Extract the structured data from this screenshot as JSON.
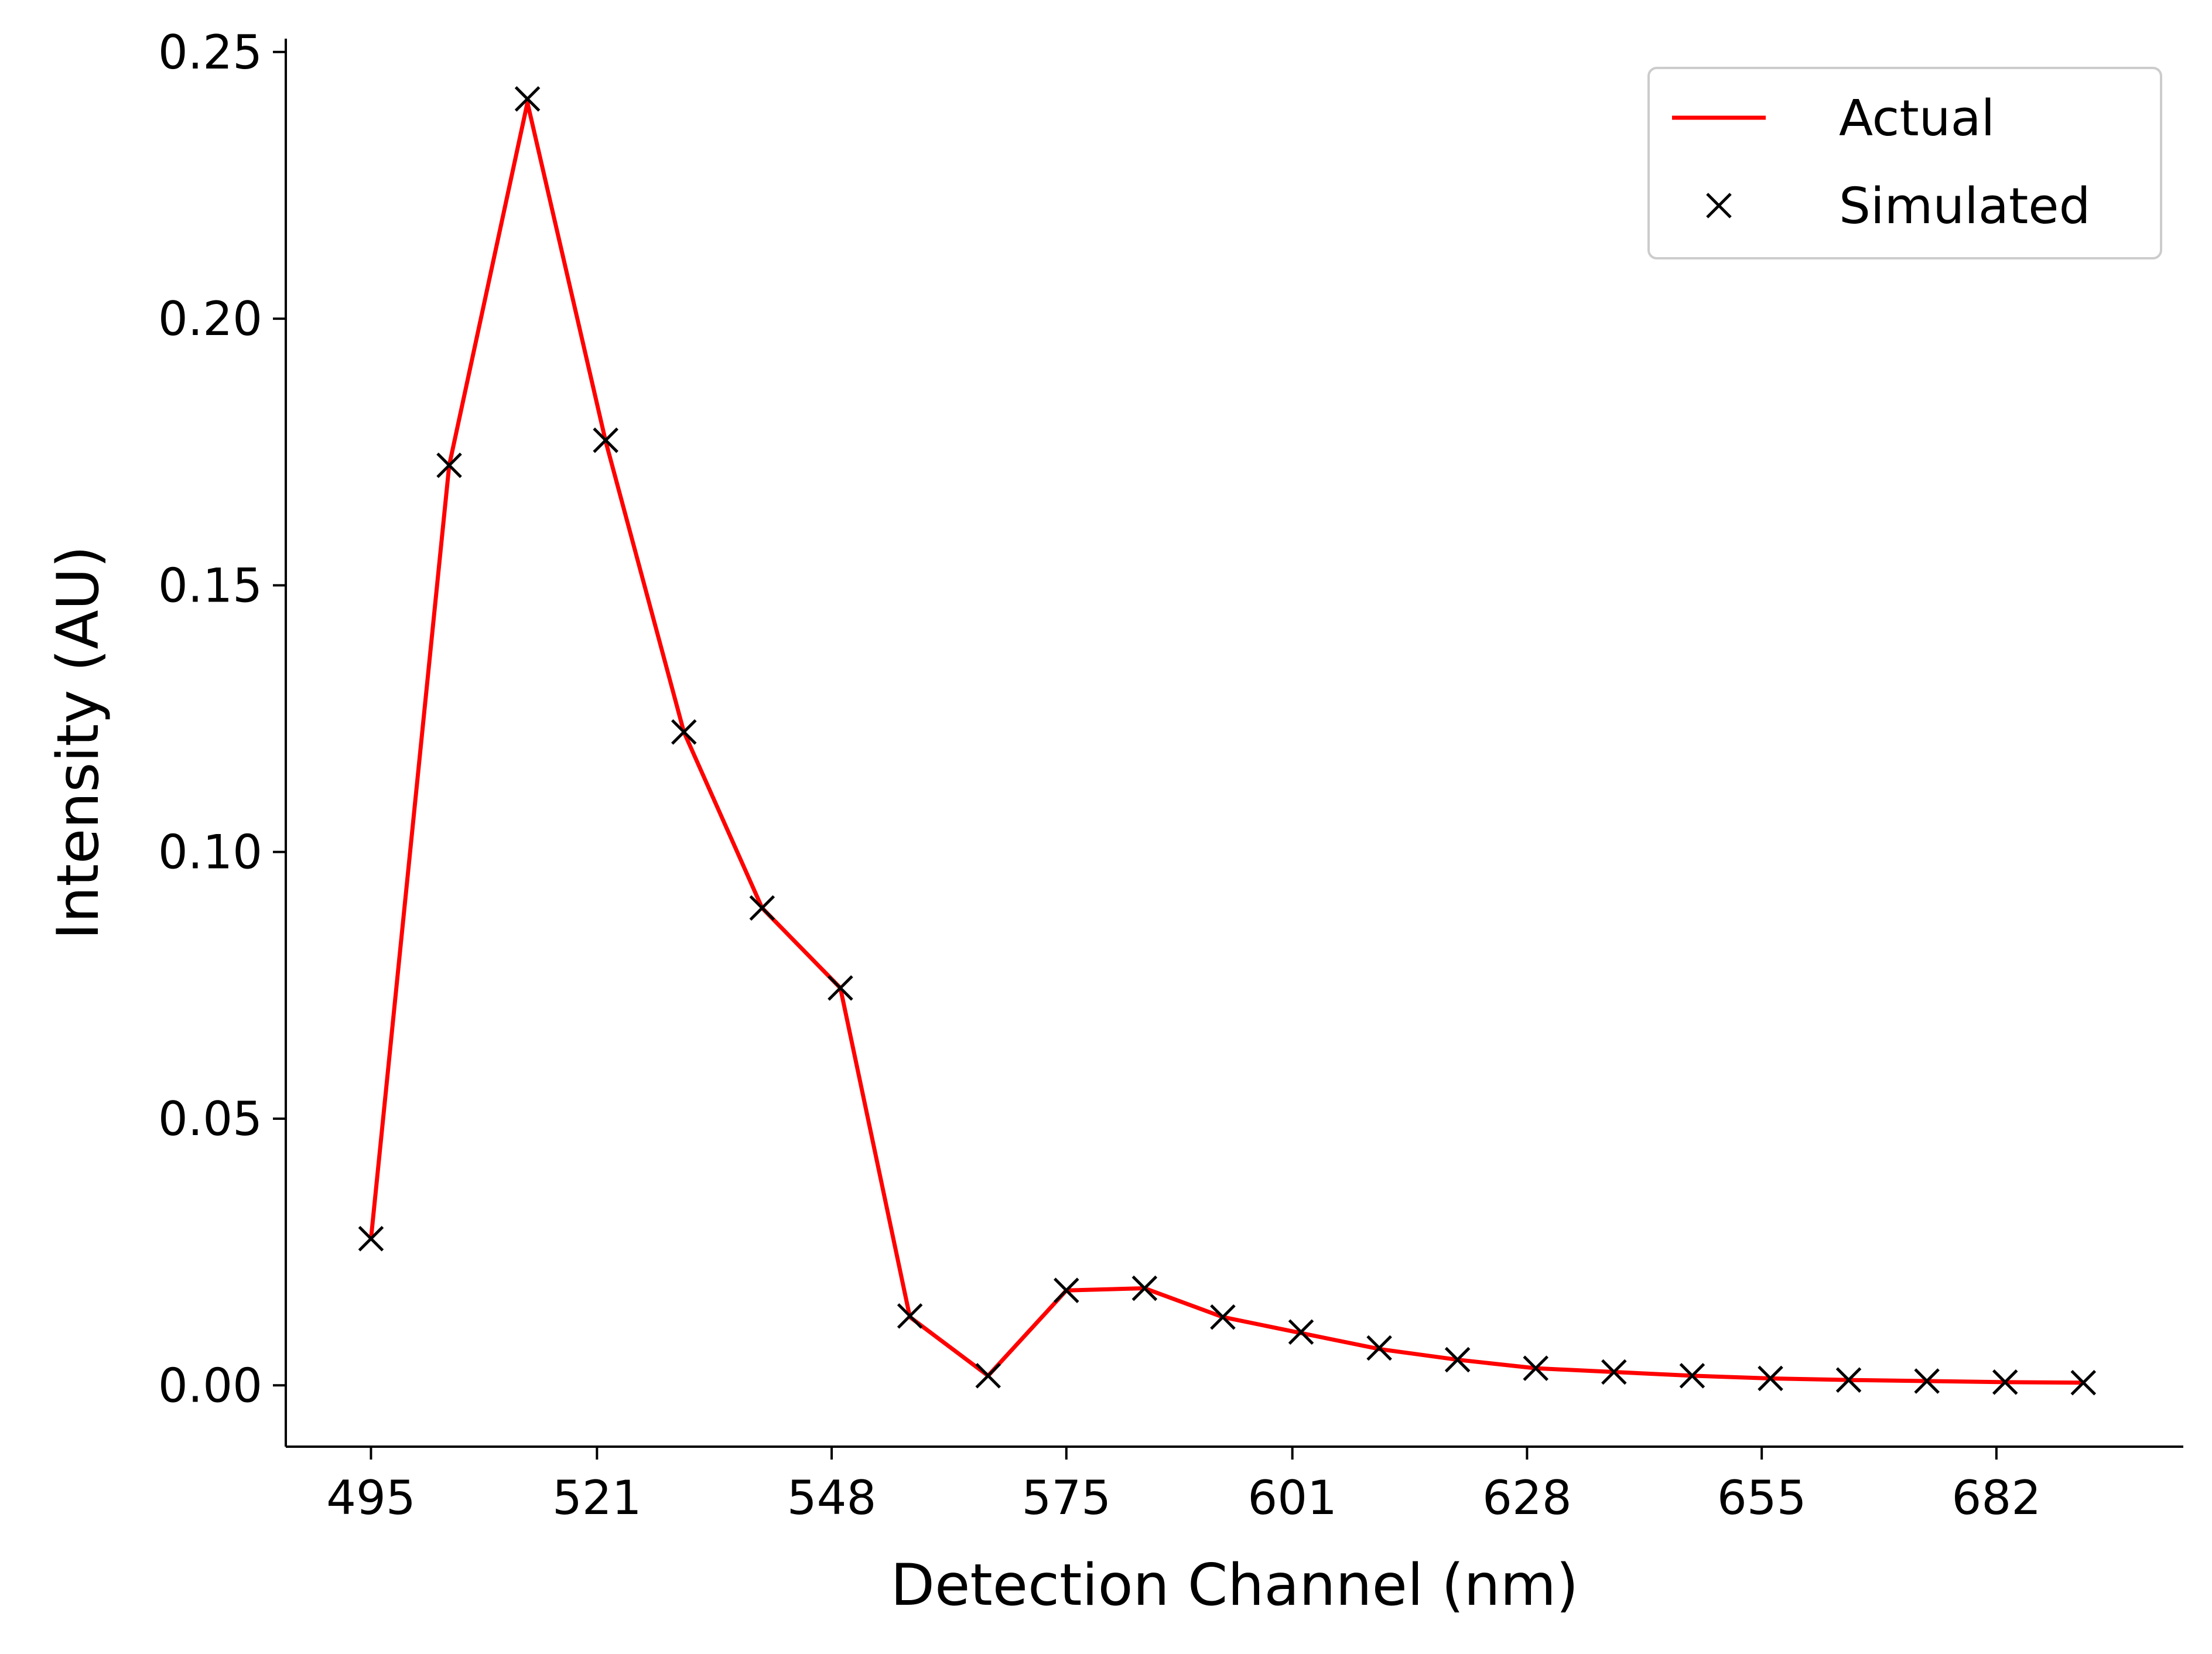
{
  "chart_data": {
    "type": "line",
    "title": "",
    "xlabel": "Detection Channel (nm)",
    "ylabel": "Intensity (AU)",
    "xlim": [
      485.2,
      703.5
    ],
    "ylim": [
      -0.0115,
      0.2525
    ],
    "xticks": [
      495,
      521,
      548,
      575,
      601,
      628,
      655,
      682
    ],
    "yticks": [
      0.0,
      0.05,
      0.1,
      0.15,
      0.2,
      0.25
    ],
    "ytick_labels": [
      "0.00",
      "0.05",
      "0.10",
      "0.15",
      "0.20",
      "0.25"
    ],
    "grid": false,
    "legend_position": "top-right",
    "x": [
      495,
      504,
      513,
      522,
      531,
      540,
      549,
      557,
      566,
      575,
      584,
      593,
      602,
      611,
      620,
      629,
      638,
      647,
      656,
      665,
      674,
      683,
      692
    ],
    "series": [
      {
        "name": "Actual",
        "style": "line",
        "color": "#ff0000",
        "values": [
          0.0275,
          0.1725,
          0.2405,
          0.177,
          0.1225,
          0.0895,
          0.0745,
          0.0128,
          0.0018,
          0.0178,
          0.0182,
          0.0128,
          0.0098,
          0.0068,
          0.0048,
          0.0032,
          0.0025,
          0.0018,
          0.0013,
          0.001,
          0.0008,
          0.0006,
          0.0005
        ]
      },
      {
        "name": "Simulated",
        "style": "marker-x",
        "color": "#000000",
        "values": [
          0.0275,
          0.1725,
          0.2412,
          0.1772,
          0.1225,
          0.0895,
          0.0745,
          0.013,
          0.0018,
          0.0178,
          0.0182,
          0.0128,
          0.01,
          0.007,
          0.0048,
          0.0032,
          0.0025,
          0.0018,
          0.0013,
          0.001,
          0.0008,
          0.0006,
          0.0005
        ]
      }
    ]
  }
}
